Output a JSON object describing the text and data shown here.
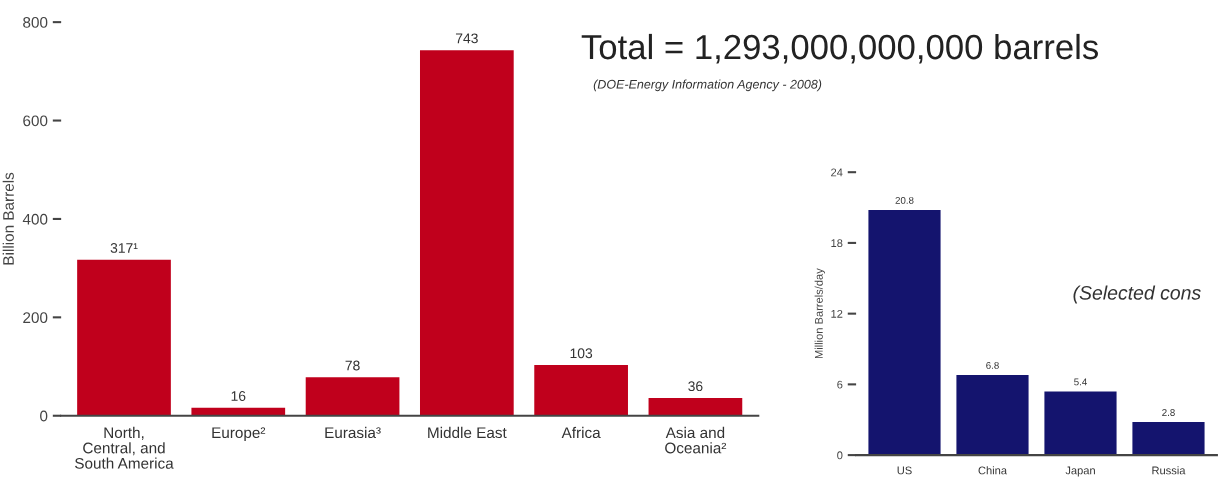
{
  "chart_data": [
    {
      "type": "bar",
      "title": "Total = 1,293,000,000,000 barrels",
      "annotations": [
        "(DOE-Energy Information Agency - 2008)"
      ],
      "ylabel": "Billion Barrels",
      "categories": [
        "North,\nCentral, and\nSouth America",
        "Europe²",
        "Eurasia³",
        "Middle East",
        "Africa",
        "Asia and\nOceania²"
      ],
      "values": [
        317,
        16,
        78,
        743,
        103,
        36
      ],
      "value_labels": [
        "317¹",
        "16",
        "78",
        "743",
        "103",
        "36"
      ],
      "color": "#c0001c",
      "ylim": [
        0,
        800
      ],
      "yticks": [
        0,
        200,
        400,
        600,
        800
      ],
      "grid": false
    },
    {
      "type": "bar",
      "ylabel": "Million Barrels/day",
      "annotations": [
        "(Selected cons"
      ],
      "categories": [
        "US",
        "China",
        "Japan",
        "Russia"
      ],
      "values": [
        20.8,
        6.8,
        5.4,
        2.8
      ],
      "data_labels": true,
      "color": "#14146e",
      "ylim": [
        0,
        24
      ],
      "yticks": [
        0,
        6,
        12,
        18,
        24
      ],
      "grid": false
    }
  ]
}
